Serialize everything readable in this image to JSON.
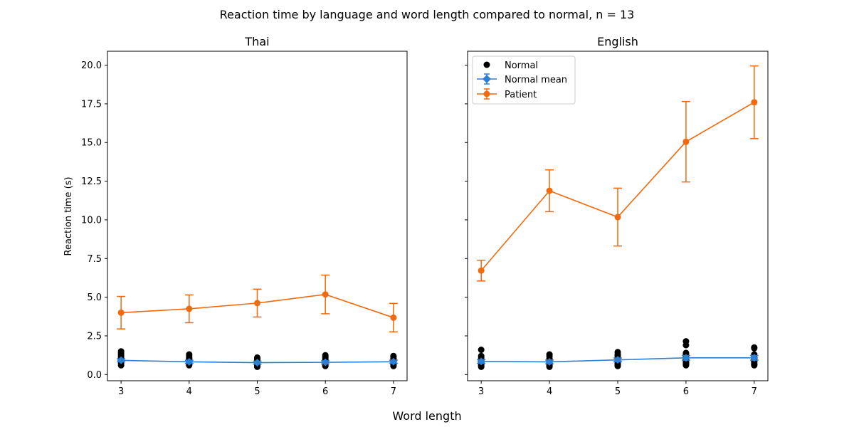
{
  "figure": {
    "title": "Reaction time by language and word length compared to normal, n = 13",
    "xlabel": "Word length",
    "ylabel": "Reaction time (s)"
  },
  "colors": {
    "normal_points": "#000000",
    "normal_mean": "#2c7fd4",
    "patient": "#f2690e"
  },
  "legend": {
    "placement": "upper-left of second panel",
    "items": [
      {
        "label": "Normal",
        "marker": "circle",
        "color": "#000000"
      },
      {
        "label": "Normal mean",
        "marker": "diamond-errorbar",
        "color": "#2c7fd4"
      },
      {
        "label": "Patient",
        "marker": "circle-errorbar",
        "color": "#f2690e"
      }
    ]
  },
  "chart_data": [
    {
      "type": "line",
      "title": "Thai",
      "x": [
        3,
        4,
        5,
        6,
        7
      ],
      "xticks": [
        "3",
        "4",
        "5",
        "6",
        "7"
      ],
      "ylim": [
        -0.4,
        20.9
      ],
      "yticks": [
        "0.0",
        "2.5",
        "5.0",
        "7.5",
        "10.0",
        "12.5",
        "15.0",
        "17.5",
        "20.0"
      ],
      "show_yticklabels": true,
      "normal_points": [
        [
          0.6,
          0.7,
          0.8,
          0.85,
          0.9,
          0.95,
          1.0,
          1.05,
          1.1,
          1.2,
          1.3,
          1.4,
          1.5
        ],
        [
          0.6,
          0.65,
          0.7,
          0.75,
          0.8,
          0.85,
          0.9,
          0.95,
          1.0,
          1.05,
          1.1,
          1.2,
          1.3
        ],
        [
          0.5,
          0.55,
          0.6,
          0.65,
          0.7,
          0.75,
          0.8,
          0.85,
          0.9,
          0.95,
          1.0,
          1.05,
          1.1
        ],
        [
          0.55,
          0.6,
          0.65,
          0.7,
          0.75,
          0.8,
          0.85,
          0.9,
          0.95,
          1.0,
          1.1,
          1.15,
          1.25
        ],
        [
          0.55,
          0.6,
          0.65,
          0.7,
          0.75,
          0.8,
          0.85,
          0.9,
          0.95,
          1.0,
          1.05,
          1.15,
          1.2
        ]
      ],
      "normal_mean": [
        0.92,
        0.82,
        0.77,
        0.79,
        0.83
      ],
      "normal_err": [
        0.1,
        0.1,
        0.1,
        0.1,
        0.1
      ],
      "patient_mean": [
        4.0,
        4.25,
        4.62,
        5.18,
        3.68
      ],
      "patient_err": [
        1.05,
        0.9,
        0.9,
        1.25,
        0.92
      ]
    },
    {
      "type": "line",
      "title": "English",
      "x": [
        3,
        4,
        5,
        6,
        7
      ],
      "xticks": [
        "3",
        "4",
        "5",
        "6",
        "7"
      ],
      "ylim": [
        -0.4,
        20.9
      ],
      "yticks": [
        "0.0",
        "2.5",
        "5.0",
        "7.5",
        "10.0",
        "12.5",
        "15.0",
        "17.5",
        "20.0"
      ],
      "show_yticklabels": false,
      "normal_points": [
        [
          0.5,
          0.55,
          0.6,
          0.65,
          0.7,
          0.8,
          0.85,
          0.9,
          0.95,
          1.0,
          1.1,
          1.2,
          1.6
        ],
        [
          0.5,
          0.55,
          0.6,
          0.65,
          0.7,
          0.75,
          0.8,
          0.85,
          0.9,
          0.95,
          1.05,
          1.2,
          1.3
        ],
        [
          0.55,
          0.6,
          0.65,
          0.7,
          0.8,
          0.85,
          0.9,
          0.95,
          1.0,
          1.1,
          1.2,
          1.3,
          1.45
        ],
        [
          0.6,
          0.65,
          0.7,
          0.75,
          0.8,
          0.9,
          1.0,
          1.1,
          1.2,
          1.3,
          1.4,
          1.9,
          2.15
        ],
        [
          0.6,
          0.65,
          0.7,
          0.8,
          0.85,
          0.9,
          1.0,
          1.05,
          1.1,
          1.2,
          1.3,
          1.7,
          1.75
        ]
      ],
      "normal_mean": [
        0.85,
        0.82,
        0.95,
        1.08,
        1.08
      ],
      "normal_err": [
        0.12,
        0.12,
        0.12,
        0.15,
        0.15
      ],
      "patient_mean": [
        6.72,
        11.88,
        10.18,
        15.05,
        17.6
      ],
      "patient_err": [
        0.67,
        1.35,
        1.87,
        2.6,
        2.35
      ]
    }
  ]
}
